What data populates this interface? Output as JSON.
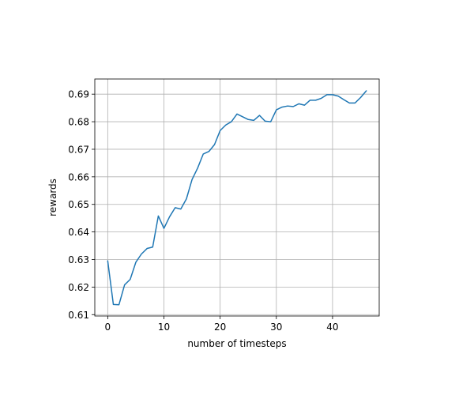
{
  "chart_data": {
    "type": "line",
    "title": "",
    "xlabel": "number of timesteps",
    "ylabel": "rewards",
    "xlim": [
      -2.3,
      48.3
    ],
    "ylim": [
      0.6095,
      0.6955
    ],
    "grid": true,
    "line_color": "#1f77b4",
    "x_ticks": [
      0,
      10,
      20,
      30,
      40
    ],
    "x_tick_labels": [
      "0",
      "10",
      "20",
      "30",
      "40"
    ],
    "y_ticks": [
      0.61,
      0.62,
      0.63,
      0.64,
      0.65,
      0.66,
      0.67,
      0.68,
      0.69
    ],
    "y_tick_labels": [
      "0.61",
      "0.62",
      "0.63",
      "0.64",
      "0.65",
      "0.66",
      "0.67",
      "0.68",
      "0.69"
    ],
    "series": [
      {
        "x": [
          0,
          1,
          2,
          3,
          4,
          5,
          6,
          7,
          8,
          9,
          10,
          11,
          12,
          13,
          14,
          15,
          16,
          17,
          18,
          19,
          20,
          21,
          22,
          23,
          24,
          25,
          26,
          27,
          28,
          29,
          30,
          31,
          32,
          33,
          34,
          35,
          36,
          37,
          38,
          39,
          40,
          41,
          42,
          43,
          44,
          45,
          46
        ],
        "values": [
          0.6295,
          0.6137,
          0.6136,
          0.6208,
          0.6228,
          0.629,
          0.632,
          0.634,
          0.6345,
          0.6458,
          0.6413,
          0.6455,
          0.6488,
          0.6483,
          0.652,
          0.659,
          0.6632,
          0.6683,
          0.6692,
          0.6717,
          0.6768,
          0.6788,
          0.68,
          0.6828,
          0.6818,
          0.6808,
          0.6805,
          0.6823,
          0.6802,
          0.68,
          0.6843,
          0.6853,
          0.6857,
          0.6855,
          0.6865,
          0.686,
          0.6878,
          0.6878,
          0.6885,
          0.6898,
          0.6898,
          0.6893,
          0.688,
          0.6868,
          0.6868,
          0.6888,
          0.6912
        ]
      }
    ]
  }
}
